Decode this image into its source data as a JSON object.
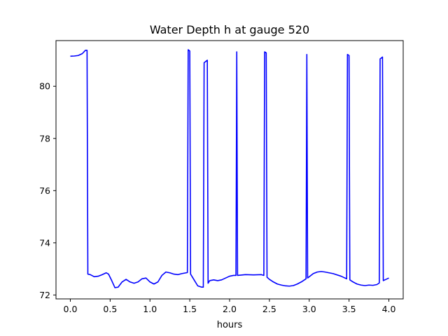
{
  "chart_data": {
    "type": "line",
    "title": "Water Depth h at gauge 520",
    "xlabel": "hours",
    "ylabel": "",
    "xlim": [
      -0.18,
      4.18
    ],
    "ylim": [
      71.85,
      81.75
    ],
    "xticks": [
      0.0,
      0.5,
      1.0,
      1.5,
      2.0,
      2.5,
      3.0,
      3.5,
      4.0
    ],
    "xtick_labels": [
      "0.0",
      "0.5",
      "1.0",
      "1.5",
      "2.0",
      "2.5",
      "3.0",
      "3.5",
      "4.0"
    ],
    "yticks": [
      72,
      74,
      76,
      78,
      80
    ],
    "ytick_labels": [
      "72",
      "74",
      "76",
      "78",
      "80"
    ],
    "grid": false,
    "series": [
      {
        "color": "#0000ff",
        "x": [
          0.0,
          0.05,
          0.1,
          0.15,
          0.19,
          0.21,
          0.22,
          0.25,
          0.3,
          0.35,
          0.4,
          0.45,
          0.48,
          0.52,
          0.56,
          0.6,
          0.65,
          0.7,
          0.75,
          0.8,
          0.85,
          0.9,
          0.95,
          1.0,
          1.05,
          1.1,
          1.15,
          1.2,
          1.25,
          1.3,
          1.35,
          1.4,
          1.47,
          1.48,
          1.5,
          1.51,
          1.55,
          1.6,
          1.65,
          1.67,
          1.68,
          1.72,
          1.73,
          1.75,
          1.8,
          1.85,
          1.9,
          1.95,
          2.0,
          2.05,
          2.08,
          2.09,
          2.1,
          2.2,
          2.3,
          2.4,
          2.43,
          2.44,
          2.46,
          2.47,
          2.5,
          2.55,
          2.6,
          2.65,
          2.7,
          2.75,
          2.8,
          2.85,
          2.9,
          2.96,
          2.97,
          2.98,
          3.0,
          3.05,
          3.1,
          3.15,
          3.2,
          3.3,
          3.4,
          3.47,
          3.48,
          3.5,
          3.51,
          3.55,
          3.6,
          3.65,
          3.7,
          3.75,
          3.8,
          3.85,
          3.88,
          3.89,
          3.92,
          3.93,
          3.95,
          4.0
        ],
        "y": [
          81.15,
          81.16,
          81.18,
          81.25,
          81.38,
          81.38,
          72.8,
          72.78,
          72.7,
          72.72,
          72.78,
          72.85,
          72.8,
          72.55,
          72.28,
          72.3,
          72.5,
          72.6,
          72.5,
          72.45,
          72.5,
          72.62,
          72.65,
          72.5,
          72.42,
          72.5,
          72.75,
          72.88,
          72.85,
          72.8,
          72.78,
          72.82,
          72.86,
          81.4,
          81.35,
          72.8,
          72.6,
          72.35,
          72.3,
          72.3,
          80.9,
          81.0,
          72.45,
          72.55,
          72.58,
          72.55,
          72.58,
          72.65,
          72.72,
          72.75,
          72.75,
          81.32,
          72.75,
          72.78,
          72.77,
          72.78,
          72.75,
          81.32,
          81.28,
          72.68,
          72.6,
          72.5,
          72.42,
          72.38,
          72.35,
          72.34,
          72.36,
          72.42,
          72.5,
          72.62,
          81.22,
          72.65,
          72.7,
          72.82,
          72.88,
          72.9,
          72.88,
          72.82,
          72.72,
          72.62,
          81.22,
          81.18,
          72.58,
          72.5,
          72.42,
          72.38,
          72.36,
          72.38,
          72.37,
          72.4,
          72.46,
          81.05,
          81.12,
          72.55,
          72.58,
          72.65
        ]
      }
    ]
  }
}
